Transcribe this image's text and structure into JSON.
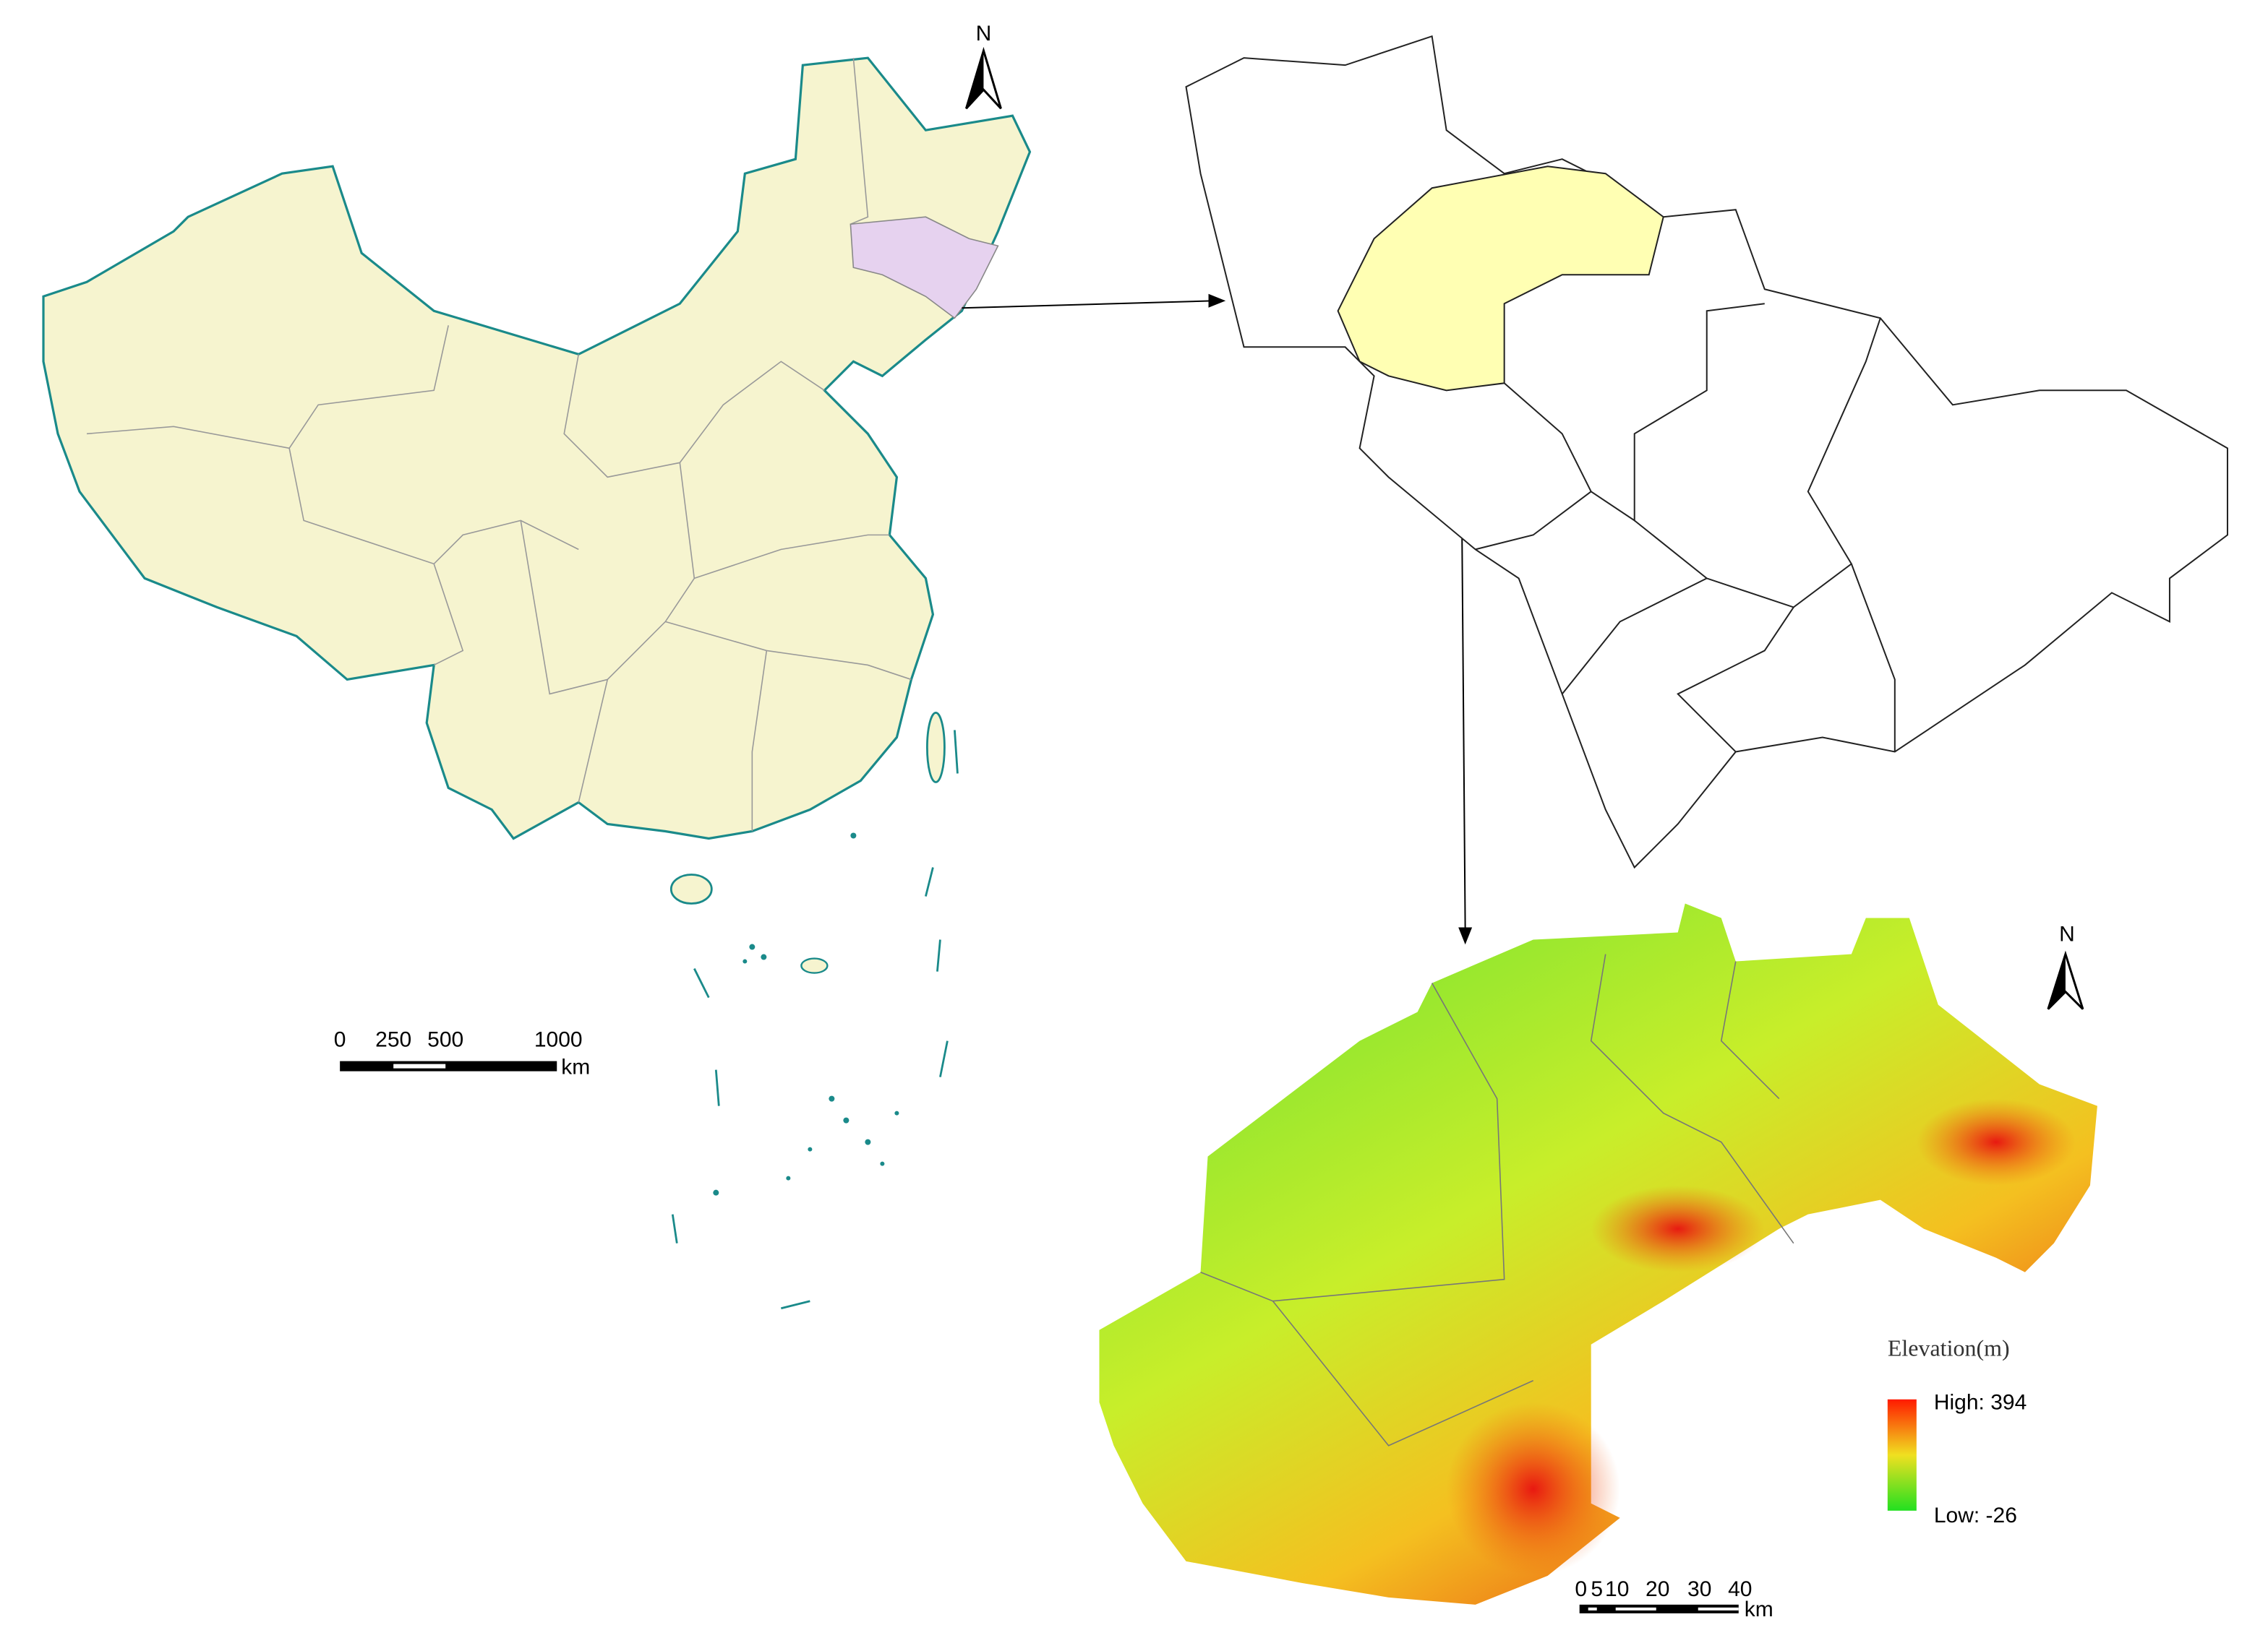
{
  "china_map": {
    "north": "N",
    "scale": {
      "labels": [
        "0",
        "250",
        "500",
        "1000"
      ],
      "unit": "km"
    }
  },
  "elevation_map": {
    "north": "N",
    "scale": {
      "labels": [
        "0",
        "5",
        "10",
        "20",
        "30",
        "40"
      ],
      "unit": "km"
    },
    "legend": {
      "title": "Elevation(m)",
      "high": "High: 394",
      "low": "Low: -26"
    }
  }
}
